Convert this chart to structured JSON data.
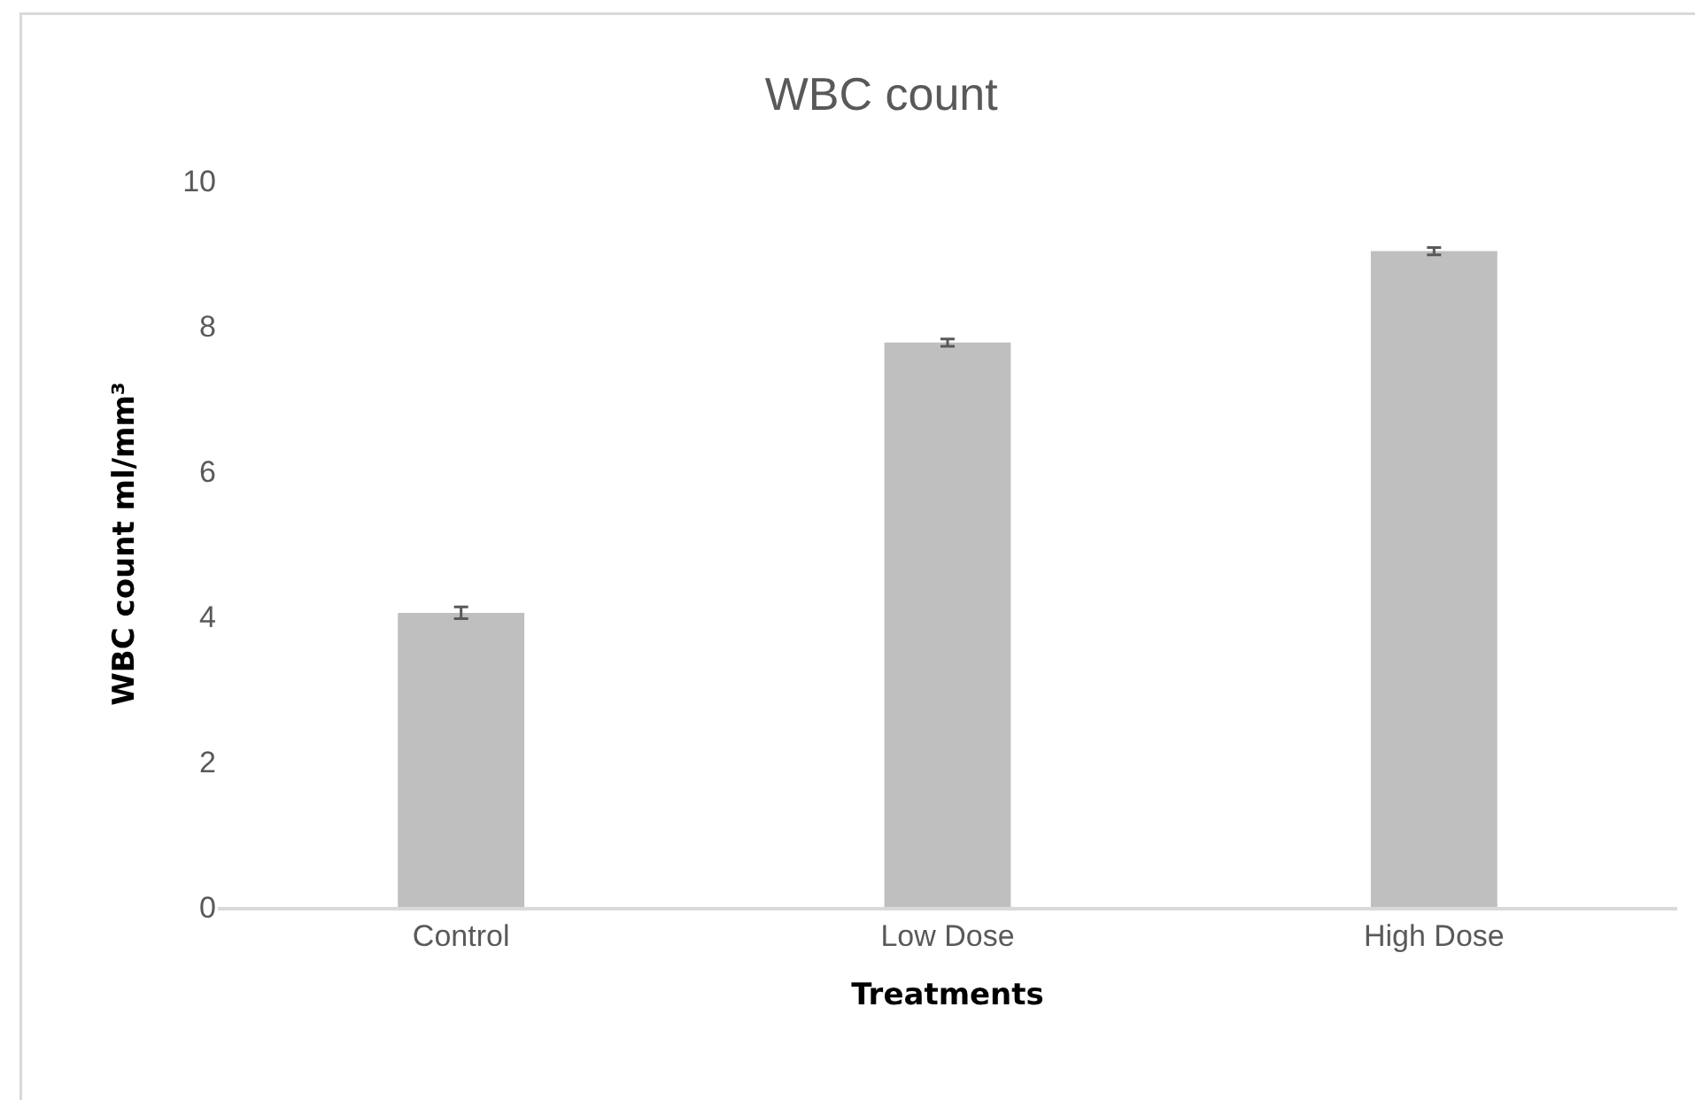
{
  "chart_data": {
    "type": "bar",
    "title": "WBC count",
    "xlabel": "Treatments",
    "ylabel": "WBC count ml/mm³",
    "categories": [
      "Control",
      "Low Dose",
      "High Dose"
    ],
    "values": [
      4.05,
      7.77,
      9.03
    ],
    "errors": [
      0.08,
      0.05,
      0.05
    ],
    "color": "#bfbfbf",
    "ylim": [
      0,
      10
    ],
    "yticks": [
      0,
      2,
      4,
      6,
      8,
      10
    ]
  }
}
